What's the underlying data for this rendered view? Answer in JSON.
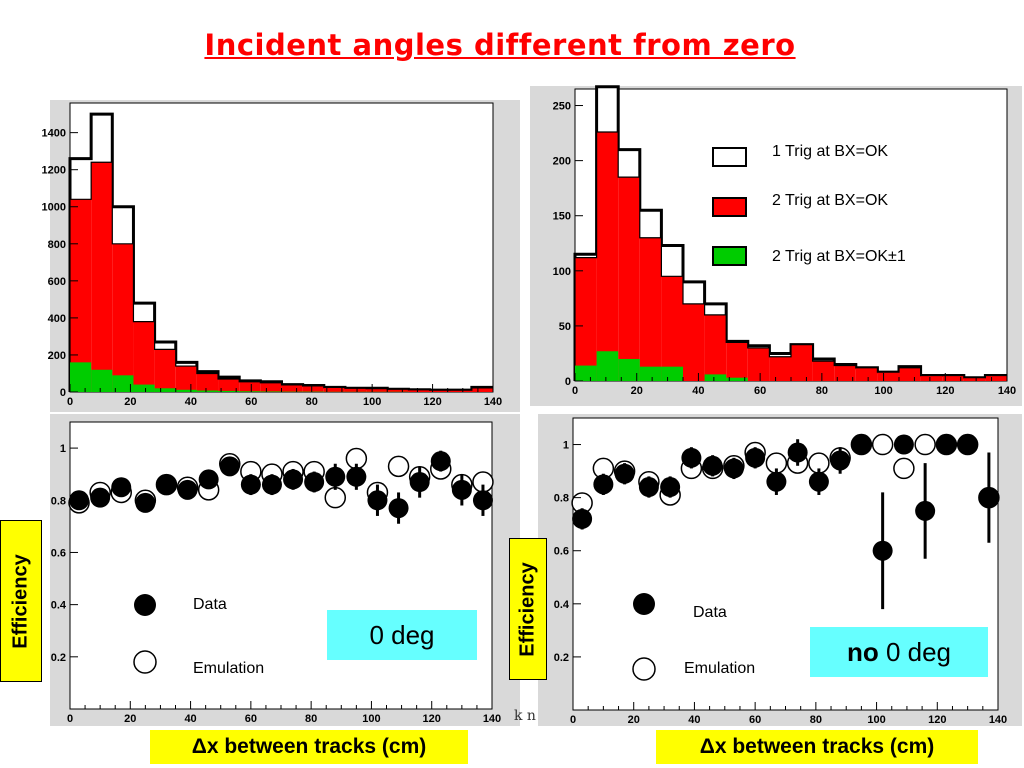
{
  "title": "Incident angles different from zero",
  "legend_hist": [
    {
      "label": "1 Trig at BX=OK",
      "color": "#ffffff"
    },
    {
      "label": "2 Trig at BX=OK",
      "color": "#ff0000"
    },
    {
      "label": "2 Trig at BX=OK±1",
      "color": "#00cc00"
    }
  ],
  "legend_eff_left": {
    "data": "Data",
    "emulation": "Emulation"
  },
  "legend_eff_right": {
    "data": "Data",
    "emulation": "Emulation"
  },
  "deg_left": "0 deg",
  "deg_right_bold": "no",
  "deg_right_rest": " 0 deg",
  "ylabel_left": "Efficiency",
  "ylabel_right": "Efficiency",
  "xlabel_left": "Δx between tracks (cm)",
  "xlabel_right": "Δx between tracks (cm)",
  "stray_text": "k n",
  "colors": {
    "red": "#ff0000",
    "green": "#00cc00",
    "cyan": "#66ffff",
    "yellow": "#ffff00"
  },
  "chart_data": [
    {
      "type": "bar",
      "name": "hist-0deg",
      "x_edges": [
        0,
        7,
        14,
        21,
        28,
        35,
        42,
        49,
        56,
        63,
        70,
        77,
        84,
        91,
        98,
        105,
        112,
        119,
        126,
        133,
        140
      ],
      "xlim": [
        0,
        140
      ],
      "ylim": [
        0,
        1560
      ],
      "xticks": [
        0,
        20,
        40,
        60,
        80,
        100,
        120,
        140
      ],
      "yticks": [
        0,
        200,
        400,
        600,
        800,
        1000,
        1200,
        1400
      ],
      "series": [
        {
          "name": "1 Trig at BX=OK",
          "values": [
            1260,
            1500,
            1000,
            480,
            270,
            160,
            110,
            80,
            60,
            55,
            40,
            35,
            25,
            20,
            20,
            15,
            12,
            10,
            10,
            25
          ]
        },
        {
          "name": "2 Trig at BX=OK",
          "values": [
            1040,
            1240,
            800,
            380,
            230,
            140,
            100,
            70,
            55,
            50,
            38,
            33,
            25,
            20,
            18,
            15,
            12,
            10,
            10,
            22
          ]
        },
        {
          "name": "2 Trig at BX=OK±1",
          "values": [
            160,
            120,
            90,
            40,
            20,
            12,
            8,
            6,
            4,
            3,
            2,
            2,
            1,
            1,
            1,
            1,
            0,
            0,
            0,
            0
          ]
        }
      ]
    },
    {
      "type": "bar",
      "name": "hist-no0deg",
      "x_edges": [
        0,
        7,
        14,
        21,
        28,
        35,
        42,
        49,
        56,
        63,
        70,
        77,
        84,
        91,
        98,
        105,
        112,
        119,
        126,
        133,
        140
      ],
      "xlim": [
        0,
        140
      ],
      "ylim": [
        0,
        265
      ],
      "xticks": [
        0,
        20,
        40,
        60,
        80,
        100,
        120,
        140
      ],
      "yticks": [
        0,
        50,
        100,
        150,
        200,
        250
      ],
      "series": [
        {
          "name": "1 Trig at BX=OK",
          "values": [
            115,
            267,
            210,
            155,
            123,
            90,
            70,
            36,
            32,
            25,
            33,
            20,
            15,
            12,
            8,
            13,
            5,
            5,
            3,
            5
          ]
        },
        {
          "name": "2 Trig at BX=OK",
          "values": [
            112,
            226,
            185,
            130,
            95,
            70,
            60,
            35,
            30,
            22,
            33,
            18,
            14,
            12,
            8,
            12,
            5,
            5,
            3,
            5
          ]
        },
        {
          "name": "2 Trig at BX=OK±1",
          "values": [
            14,
            27,
            20,
            13,
            13,
            0,
            6,
            3,
            0,
            0,
            0,
            0,
            0,
            0,
            0,
            0,
            0,
            0,
            0,
            0
          ]
        }
      ]
    },
    {
      "type": "scatter",
      "name": "eff-0deg",
      "xlim": [
        0,
        140
      ],
      "ylim": [
        0,
        1.1
      ],
      "xticks": [
        0,
        20,
        40,
        60,
        80,
        100,
        120,
        140
      ],
      "yticks": [
        0.2,
        0.4,
        0.6,
        0.8,
        1
      ],
      "series": [
        {
          "name": "Data",
          "filled": true,
          "points": [
            [
              3,
              0.8,
              0.03
            ],
            [
              10,
              0.81,
              0.03
            ],
            [
              17,
              0.85,
              0.03
            ],
            [
              25,
              0.79,
              0.03
            ],
            [
              32,
              0.86,
              0.03
            ],
            [
              39,
              0.84,
              0.03
            ],
            [
              46,
              0.88,
              0.03
            ],
            [
              53,
              0.93,
              0.03
            ],
            [
              60,
              0.86,
              0.04
            ],
            [
              67,
              0.86,
              0.04
            ],
            [
              74,
              0.88,
              0.04
            ],
            [
              81,
              0.87,
              0.04
            ],
            [
              88,
              0.89,
              0.05
            ],
            [
              95,
              0.89,
              0.05
            ],
            [
              102,
              0.8,
              0.06
            ],
            [
              109,
              0.77,
              0.06
            ],
            [
              116,
              0.87,
              0.06
            ],
            [
              123,
              0.95,
              0.04
            ],
            [
              130,
              0.84,
              0.06
            ],
            [
              137,
              0.8,
              0.06
            ]
          ]
        },
        {
          "name": "Emulation",
          "filled": false,
          "points": [
            [
              3,
              0.79
            ],
            [
              10,
              0.83
            ],
            [
              17,
              0.83
            ],
            [
              25,
              0.8
            ],
            [
              32,
              0.86
            ],
            [
              39,
              0.85
            ],
            [
              46,
              0.84
            ],
            [
              53,
              0.94
            ],
            [
              60,
              0.91
            ],
            [
              67,
              0.9
            ],
            [
              74,
              0.91
            ],
            [
              81,
              0.91
            ],
            [
              88,
              0.81
            ],
            [
              95,
              0.96
            ],
            [
              102,
              0.83
            ],
            [
              109,
              0.93
            ],
            [
              116,
              0.89
            ],
            [
              123,
              0.92
            ],
            [
              130,
              0.86
            ],
            [
              137,
              0.87
            ]
          ]
        }
      ]
    },
    {
      "type": "scatter",
      "name": "eff-no0deg",
      "xlim": [
        0,
        140
      ],
      "ylim": [
        0,
        1.1
      ],
      "xticks": [
        0,
        20,
        40,
        60,
        80,
        100,
        120,
        140
      ],
      "yticks": [
        0.2,
        0.4,
        0.6,
        0.8,
        1
      ],
      "series": [
        {
          "name": "Data",
          "filled": true,
          "points": [
            [
              3,
              0.72,
              0.04
            ],
            [
              10,
              0.85,
              0.04
            ],
            [
              17,
              0.89,
              0.04
            ],
            [
              25,
              0.84,
              0.04
            ],
            [
              32,
              0.84,
              0.04
            ],
            [
              39,
              0.95,
              0.04
            ],
            [
              46,
              0.92,
              0.04
            ],
            [
              53,
              0.91,
              0.04
            ],
            [
              60,
              0.95,
              0.04
            ],
            [
              67,
              0.86,
              0.05
            ],
            [
              74,
              0.97,
              0.05
            ],
            [
              81,
              0.86,
              0.05
            ],
            [
              88,
              0.94,
              0.05
            ],
            [
              95,
              1.0,
              0.03
            ],
            [
              102,
              0.6,
              0.22
            ],
            [
              109,
              1.0,
              0.03
            ],
            [
              116,
              0.75,
              0.18
            ],
            [
              123,
              1.0,
              0.02
            ],
            [
              130,
              1.0,
              0.02
            ],
            [
              137,
              0.8,
              0.17
            ]
          ]
        },
        {
          "name": "Emulation",
          "filled": false,
          "points": [
            [
              3,
              0.78
            ],
            [
              10,
              0.91
            ],
            [
              17,
              0.9
            ],
            [
              25,
              0.86
            ],
            [
              32,
              0.81
            ],
            [
              39,
              0.91
            ],
            [
              46,
              0.91
            ],
            [
              53,
              0.92
            ],
            [
              60,
              0.97
            ],
            [
              67,
              0.93
            ],
            [
              74,
              0.93
            ],
            [
              81,
              0.93
            ],
            [
              88,
              0.95
            ],
            [
              95,
              1.0
            ],
            [
              102,
              1.0
            ],
            [
              109,
              0.91
            ],
            [
              116,
              1.0
            ],
            [
              123,
              1.0
            ],
            [
              130,
              1.0
            ],
            [
              137,
              0.8
            ]
          ]
        }
      ]
    }
  ]
}
